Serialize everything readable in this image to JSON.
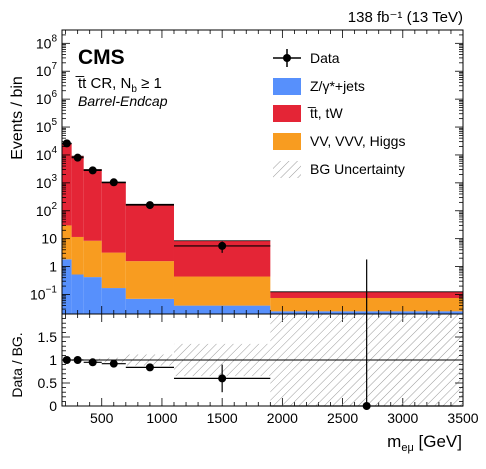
{
  "chart_data": {
    "type": "bar",
    "lumi_label": "138 fb⁻¹ (13 TeV)",
    "experiment": "CMS",
    "region_label": "t̅t CR, N",
    "region_sub": "b",
    "region_cond": " ≥ 1",
    "category_label": "Barrel-Endcap",
    "ylabel": "Events / bin",
    "ratio_ylabel": "Data / BG.",
    "xlabel_main": "m",
    "xlabel_sub": "eμ",
    "xlabel_unit": " [GeV]",
    "x_range": [
      170,
      3500
    ],
    "y_range": [
      0.02,
      300000000
    ],
    "y_scale": "log",
    "ratio_range": [
      0,
      2
    ],
    "bins": [
      [
        170,
        250
      ],
      [
        250,
        350
      ],
      [
        350,
        500
      ],
      [
        500,
        700
      ],
      [
        700,
        1100
      ],
      [
        1100,
        1900
      ],
      [
        1900,
        3500
      ]
    ],
    "stack": [
      {
        "name": "Z/γ*+jets",
        "color": "#5790fc",
        "values": [
          1.8,
          0.5,
          0.4,
          0.15,
          0.05,
          0.02,
          0.005
        ]
      },
      {
        "name": "VV, VVV, Higgs",
        "color": "#f89c20",
        "values": [
          28,
          11,
          8,
          3,
          1.5,
          0.4,
          0.05
        ]
      },
      {
        "name": "t̅t, tW",
        "color": "#e42536",
        "values": [
          25000,
          9000,
          3000,
          1000,
          170,
          8,
          0.05
        ]
      }
    ],
    "data": {
      "name": "Data",
      "x": [
        210,
        300,
        425,
        600,
        900,
        1500,
        2700
      ],
      "y": [
        26000,
        8000,
        2800,
        1050,
        160,
        5.5,
        0
      ],
      "yerr": [
        150,
        90,
        50,
        30,
        12,
        2.4,
        1.8
      ]
    },
    "ratio": {
      "y": [
        1.0,
        1.0,
        0.95,
        0.92,
        0.84,
        0.6,
        0
      ],
      "yerr": [
        0.01,
        0.01,
        0.02,
        0.03,
        0.07,
        0.3,
        2
      ],
      "unc": [
        0.01,
        0.02,
        0.03,
        0.05,
        0.12,
        0.35,
        2
      ]
    },
    "bg_unc_label": "BG Uncertainty",
    "x_ticks": [
      500,
      1000,
      1500,
      2000,
      2500,
      3000,
      3500
    ],
    "y_ticks": [
      {
        "v": 0.1,
        "base": "10",
        "exp": "−1"
      },
      {
        "v": 1,
        "label": "1"
      },
      {
        "v": 10,
        "label": "10"
      },
      {
        "v": 100,
        "base": "10",
        "exp": "2"
      },
      {
        "v": 1000,
        "base": "10",
        "exp": "3"
      },
      {
        "v": 10000,
        "base": "10",
        "exp": "4"
      },
      {
        "v": 100000,
        "base": "10",
        "exp": "5"
      },
      {
        "v": 1000000,
        "base": "10",
        "exp": "6"
      },
      {
        "v": 10000000,
        "base": "10",
        "exp": "7"
      },
      {
        "v": 100000000,
        "base": "10",
        "exp": "8"
      }
    ],
    "ratio_ticks": [
      0,
      0.5,
      1,
      1.5
    ]
  }
}
